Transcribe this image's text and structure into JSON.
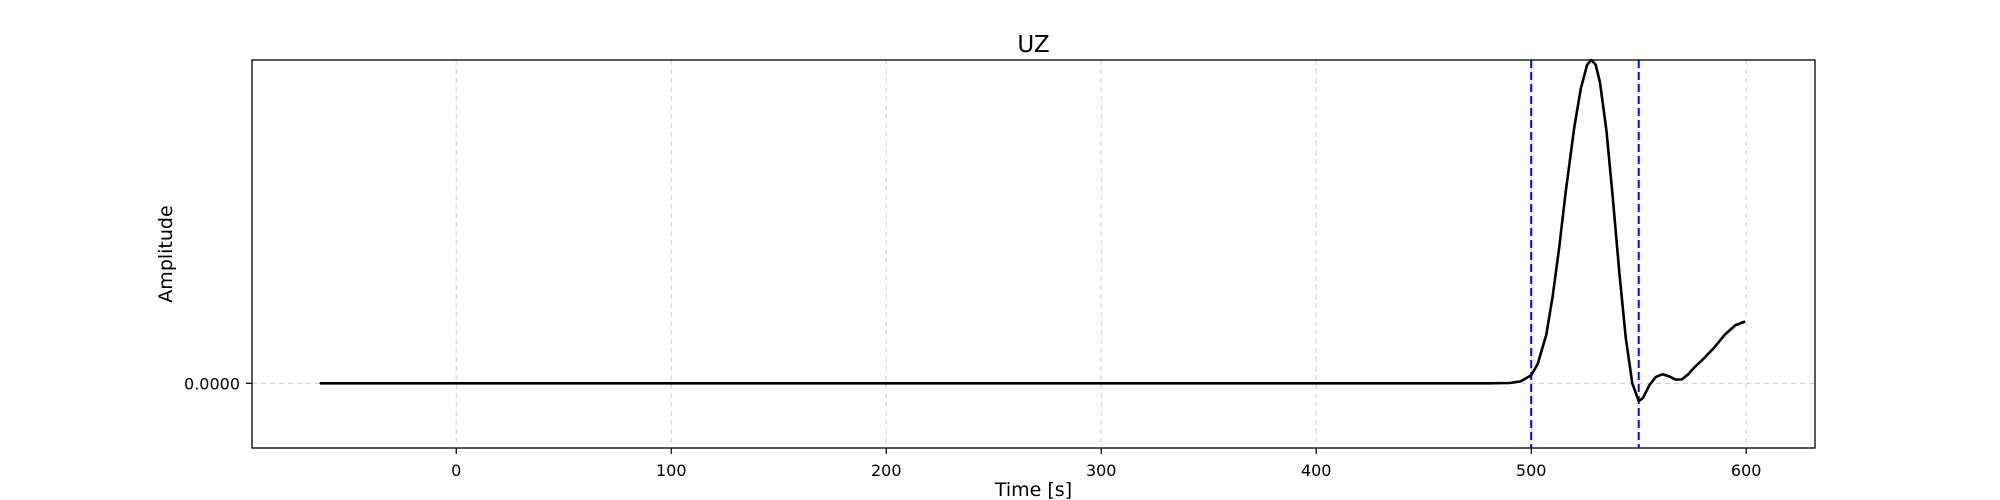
{
  "chart_data": {
    "type": "line",
    "title": "UZ",
    "xlabel": "Time [s]",
    "ylabel": "Amplitude",
    "xlim": [
      -95,
      632
    ],
    "ylim": [
      -0.2,
      1.0
    ],
    "x_ticks": [
      0,
      100,
      200,
      300,
      400,
      500,
      600
    ],
    "y_ticks": [
      0
    ],
    "y_tick_labels": [
      "0.0000"
    ],
    "grid": true,
    "legend": "none",
    "colors": {
      "line": "#000000",
      "marker_lines": "#0000ff",
      "grid": "#cccccc"
    },
    "vertical_markers": [
      500,
      550
    ],
    "series": [
      {
        "x": [
          -63,
          0,
          100,
          200,
          300,
          400,
          480,
          490,
          495,
          500,
          503,
          507,
          510,
          513,
          516,
          520,
          523,
          526,
          528,
          530,
          532,
          535,
          538,
          541,
          544,
          547,
          550,
          552,
          555,
          558,
          561,
          564,
          567,
          570,
          573,
          576,
          580,
          585,
          590,
          595,
          599
        ],
        "y": [
          0,
          0,
          0,
          0,
          0,
          0,
          0,
          0.001,
          0.006,
          0.025,
          0.06,
          0.15,
          0.27,
          0.42,
          0.59,
          0.79,
          0.91,
          0.985,
          1.0,
          0.985,
          0.93,
          0.78,
          0.57,
          0.34,
          0.14,
          0.0,
          -0.055,
          -0.045,
          -0.005,
          0.02,
          0.028,
          0.022,
          0.012,
          0.012,
          0.028,
          0.05,
          0.075,
          0.11,
          0.15,
          0.18,
          0.19
        ]
      }
    ]
  }
}
